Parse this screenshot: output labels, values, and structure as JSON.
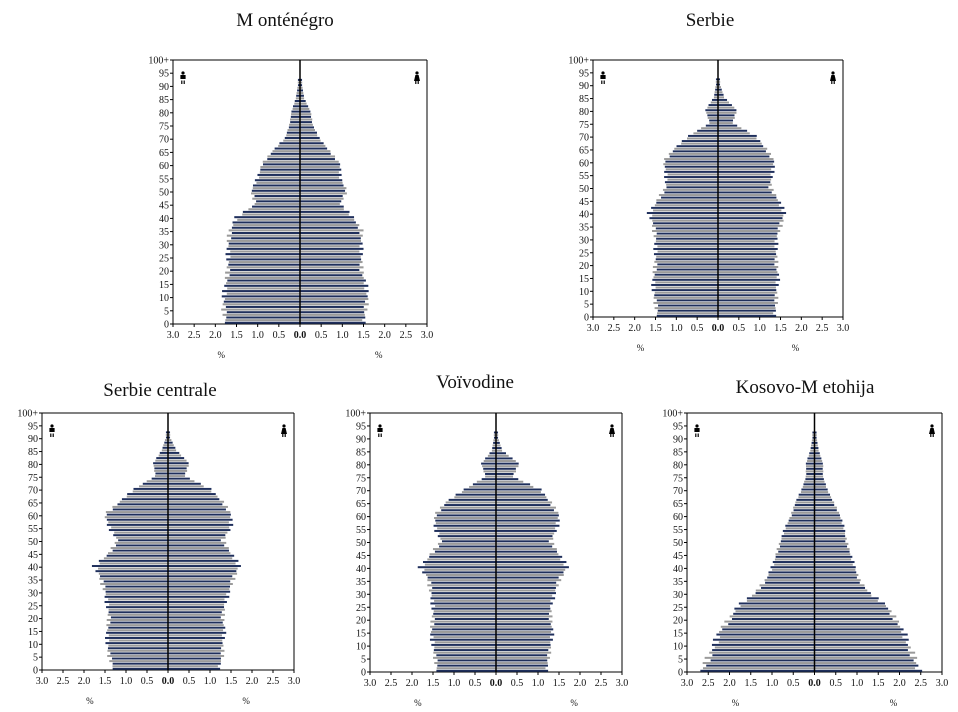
{
  "colors": {
    "dark_bar": "#1f2f5c",
    "light_bar": "#9a9a9a",
    "axis": "#000000"
  },
  "icons": {
    "left": "male-icon",
    "right": "female-icon"
  },
  "common": {
    "type": "bar",
    "age_tick_labels": [
      "0",
      "5",
      "10",
      "15",
      "20",
      "25",
      "30",
      "35",
      "40",
      "45",
      "50",
      "55",
      "60",
      "65",
      "70",
      "75",
      "80",
      "85",
      "90",
      "95",
      "100+"
    ],
    "x_tick_labels": [
      "3.0",
      "2.5",
      "2.0",
      "1.5",
      "1.0",
      "0.5",
      "0.0",
      "0.5",
      "1.0",
      "1.5",
      "2.0",
      "2.5",
      "3.0"
    ],
    "xlim": [
      -3.0,
      3.0
    ],
    "ylim": [
      0,
      100
    ],
    "x_unit_label": "%"
  },
  "chart_data": [
    {
      "type": "bar",
      "title": "M onténégro",
      "age_groups": [
        0,
        5,
        10,
        15,
        20,
        25,
        30,
        35,
        40,
        45,
        50,
        55,
        60,
        65,
        70,
        75,
        80,
        85,
        90
      ],
      "series": [
        {
          "side": "left",
          "values": [
            1.75,
            1.8,
            1.8,
            1.75,
            1.7,
            1.7,
            1.7,
            1.65,
            1.5,
            1.05,
            1.15,
            1.0,
            0.9,
            0.65,
            0.35,
            0.25,
            0.2,
            0.1,
            0.05
          ]
        },
        {
          "side": "right",
          "values": [
            1.5,
            1.55,
            1.6,
            1.55,
            1.45,
            1.45,
            1.45,
            1.45,
            1.25,
            0.95,
            1.1,
            0.95,
            0.95,
            0.7,
            0.45,
            0.3,
            0.25,
            0.1,
            0.05
          ]
        }
      ]
    },
    {
      "type": "bar",
      "title": "Serbie",
      "age_groups": [
        0,
        5,
        10,
        15,
        20,
        25,
        30,
        35,
        40,
        45,
        50,
        55,
        60,
        65,
        70,
        75,
        80,
        85,
        90
      ],
      "series": [
        {
          "side": "left",
          "values": [
            1.45,
            1.5,
            1.55,
            1.55,
            1.5,
            1.5,
            1.5,
            1.55,
            1.65,
            1.45,
            1.25,
            1.25,
            1.3,
            1.05,
            0.7,
            0.2,
            0.3,
            0.1,
            0.05
          ]
        },
        {
          "side": "right",
          "values": [
            1.35,
            1.4,
            1.4,
            1.45,
            1.4,
            1.4,
            1.4,
            1.5,
            1.6,
            1.45,
            1.25,
            1.3,
            1.35,
            1.15,
            0.9,
            0.35,
            0.45,
            0.15,
            0.05
          ]
        }
      ]
    },
    {
      "type": "bar",
      "title": "Serbie centrale",
      "age_groups": [
        0,
        5,
        10,
        15,
        20,
        25,
        30,
        35,
        40,
        45,
        50,
        55,
        60,
        65,
        70,
        75,
        80,
        85,
        90
      ],
      "series": [
        {
          "side": "left",
          "values": [
            1.3,
            1.4,
            1.45,
            1.45,
            1.4,
            1.45,
            1.5,
            1.6,
            1.75,
            1.4,
            1.2,
            1.4,
            1.5,
            1.15,
            0.8,
            0.3,
            0.35,
            0.15,
            0.05
          ]
        },
        {
          "side": "right",
          "values": [
            1.2,
            1.3,
            1.3,
            1.35,
            1.3,
            1.35,
            1.45,
            1.55,
            1.7,
            1.5,
            1.3,
            1.5,
            1.5,
            1.3,
            1.0,
            0.4,
            0.5,
            0.2,
            0.05
          ]
        }
      ]
    },
    {
      "type": "bar",
      "title": "Voïvodine",
      "age_groups": [
        0,
        5,
        10,
        15,
        20,
        25,
        30,
        35,
        40,
        45,
        50,
        55,
        60,
        65,
        70,
        75,
        80,
        85,
        90
      ],
      "series": [
        {
          "side": "left",
          "values": [
            1.4,
            1.45,
            1.5,
            1.55,
            1.5,
            1.5,
            1.55,
            1.6,
            1.8,
            1.55,
            1.3,
            1.45,
            1.45,
            1.2,
            0.75,
            0.25,
            0.35,
            0.1,
            0.05
          ]
        },
        {
          "side": "right",
          "values": [
            1.2,
            1.25,
            1.3,
            1.35,
            1.3,
            1.3,
            1.4,
            1.5,
            1.7,
            1.5,
            1.3,
            1.45,
            1.5,
            1.3,
            1.05,
            0.4,
            0.55,
            0.15,
            0.05
          ]
        }
      ]
    },
    {
      "type": "bar",
      "title": "Kosovo-M etohija",
      "age_groups": [
        0,
        5,
        10,
        15,
        20,
        25,
        30,
        35,
        40,
        45,
        50,
        55,
        60,
        65,
        70,
        75,
        80,
        85,
        90
      ],
      "series": [
        {
          "side": "left",
          "values": [
            2.65,
            2.5,
            2.35,
            2.25,
            2.0,
            1.8,
            1.4,
            1.15,
            1.0,
            0.9,
            0.8,
            0.7,
            0.55,
            0.45,
            0.3,
            0.2,
            0.2,
            0.1,
            0.05
          ]
        },
        {
          "side": "right",
          "values": [
            2.45,
            2.35,
            2.2,
            2.1,
            1.9,
            1.7,
            1.3,
            1.05,
            0.95,
            0.85,
            0.75,
            0.7,
            0.6,
            0.45,
            0.3,
            0.2,
            0.2,
            0.1,
            0.05
          ]
        }
      ]
    }
  ]
}
